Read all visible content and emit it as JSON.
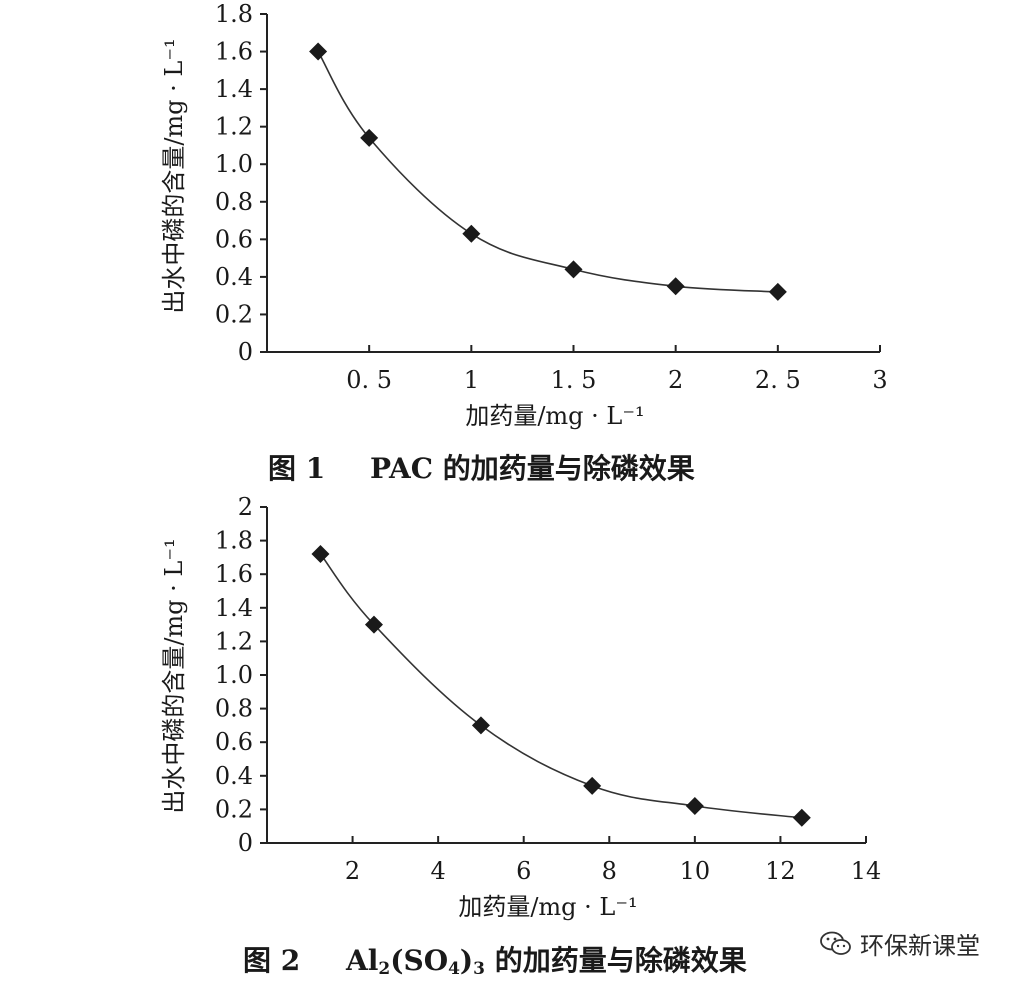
{
  "chart_data": [
    {
      "type": "line",
      "figure_label": "图 1",
      "caption": "PAC 的加药量与除磷效果",
      "xlabel": "加药量/mg · L⁻¹",
      "ylabel": "出水中磷的含量/mg · L⁻¹",
      "xlim": [
        0,
        3
      ],
      "ylim": [
        0,
        1.8
      ],
      "x_ticks": [
        0.5,
        1,
        1.5,
        2,
        2.5,
        3
      ],
      "x_tick_labels": [
        "0. 5",
        "1",
        "1. 5",
        "2",
        "2. 5",
        "3"
      ],
      "y_ticks": [
        0,
        0.2,
        0.4,
        0.6,
        0.8,
        1.0,
        1.2,
        1.4,
        1.6,
        1.8
      ],
      "y_tick_labels": [
        "0",
        "0.2",
        "0.4",
        "0.6",
        "0.8",
        "1.0",
        "1.2",
        "1.4",
        "1.6",
        "1.8"
      ],
      "grid": false,
      "marker": "diamond",
      "series": [
        {
          "x": [
            0.25,
            0.5,
            1.0,
            1.5,
            2.0,
            2.5
          ],
          "y": [
            1.6,
            1.14,
            0.63,
            0.44,
            0.35,
            0.32
          ]
        }
      ]
    },
    {
      "type": "line",
      "figure_label": "图 2",
      "caption_main": "Al",
      "caption_sub1": "2",
      "caption_mid": "(SO",
      "caption_sub2": "4",
      "caption_close": ")",
      "caption_sub3": "3",
      "caption_tail": " 的加药量与除磷效果",
      "xlabel": "加药量/mg · L⁻¹",
      "ylabel": "出水中磷的含量/mg · L⁻¹",
      "xlim": [
        0,
        14
      ],
      "ylim": [
        0,
        2
      ],
      "x_ticks": [
        2,
        4,
        6,
        8,
        10,
        12,
        14
      ],
      "x_tick_labels": [
        "2",
        "4",
        "6",
        "8",
        "10",
        "12",
        "14"
      ],
      "y_ticks": [
        0,
        0.2,
        0.4,
        0.6,
        0.8,
        1.0,
        1.2,
        1.4,
        1.6,
        1.8,
        2
      ],
      "y_tick_labels": [
        "0",
        "0.2",
        "0.4",
        "0.6",
        "0.8",
        "1.0",
        "1.2",
        "1.4",
        "1.6",
        "1.8",
        "2"
      ],
      "grid": false,
      "marker": "diamond",
      "series": [
        {
          "x": [
            1.25,
            2.5,
            5.0,
            7.6,
            10.0,
            12.5
          ],
          "y": [
            1.72,
            1.3,
            0.7,
            0.34,
            0.22,
            0.15
          ]
        }
      ]
    }
  ],
  "watermark": {
    "text": "环保新课堂",
    "icon": "wechat-icon"
  }
}
